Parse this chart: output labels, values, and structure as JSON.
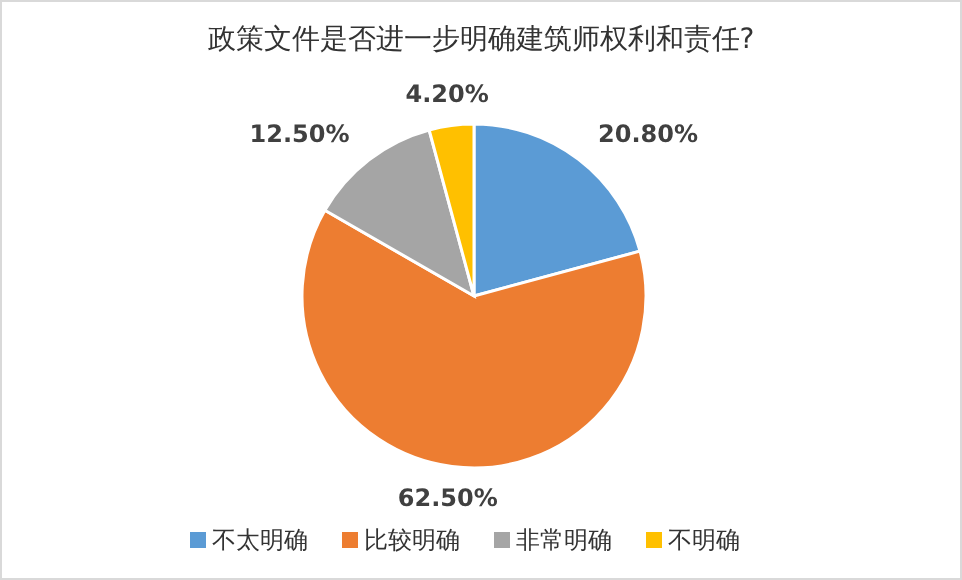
{
  "chart_data": {
    "type": "pie",
    "title": "政策文件是否进一步明确建筑师权利和责任?",
    "categories": [
      "不太明确",
      "比较明确",
      "非常明确",
      "不明确"
    ],
    "values": [
      20.8,
      62.5,
      12.5,
      4.2
    ],
    "colors": [
      "#5b9bd5",
      "#ed7d31",
      "#a5a5a5",
      "#ffc000"
    ],
    "value_labels": [
      "20.80%",
      "62.50%",
      "12.50%",
      "4.20%"
    ],
    "legend": "bottom"
  }
}
